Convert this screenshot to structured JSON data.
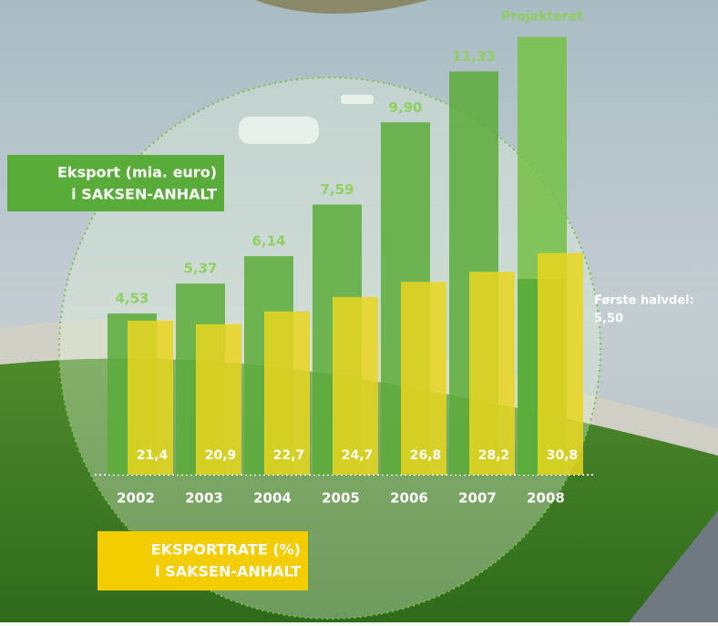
{
  "chart_data": {
    "type": "bar",
    "categories": [
      "2002",
      "2003",
      "2004",
      "2005",
      "2006",
      "2007",
      "2008"
    ],
    "series": [
      {
        "name": "Projekteret",
        "color": "#74bf45",
        "values": [
          null,
          null,
          null,
          null,
          null,
          null,
          12.3
        ]
      },
      {
        "name": "Eksport (mia. euro)",
        "region": "i SAKSEN-ANHALT",
        "color": "#5aac3a",
        "values": [
          4.53,
          5.37,
          6.14,
          7.59,
          9.9,
          11.33,
          5.5
        ],
        "value_labels": [
          "4,53",
          "5,37",
          "6,14",
          "7,59",
          "9,90",
          "11,33",
          "5,50"
        ]
      },
      {
        "name": "EKSPORTRATE (%)",
        "region": "i SAKSEN-ANHALT",
        "color": "#e8d61e",
        "axis": "y2",
        "values": [
          21.4,
          20.9,
          22.7,
          24.7,
          26.8,
          28.2,
          30.8
        ],
        "value_labels": [
          "21,4",
          "20,9",
          "22,7",
          "24,7",
          "26,8",
          "28,2",
          "30,8"
        ]
      }
    ],
    "annotation": "Første halvdel:",
    "ylim": [
      0,
      12.8
    ],
    "y2lim": [
      0,
      63.3
    ]
  }
}
